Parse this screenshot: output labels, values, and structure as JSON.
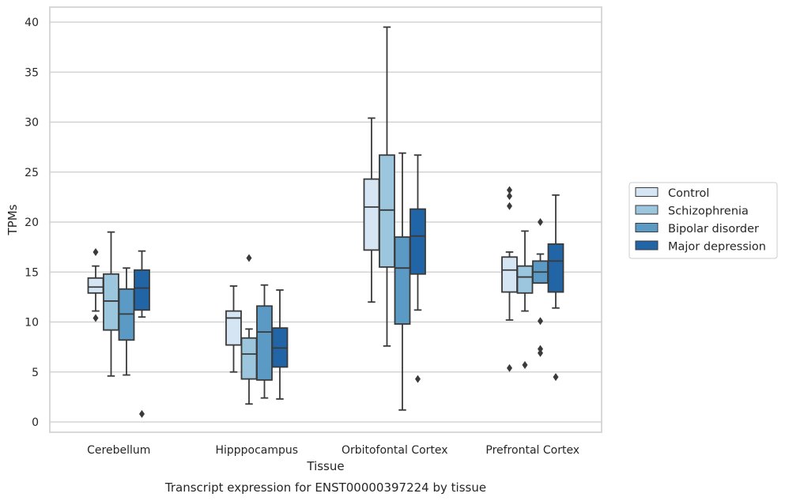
{
  "chart_data": {
    "type": "box",
    "title": "",
    "caption": "Transcript expression for ENST00000397224 by tissue",
    "xlabel": "Tissue",
    "ylabel": "TPMs",
    "ylim": [
      -1.1,
      41.5
    ],
    "yticks": [
      0,
      5,
      10,
      15,
      20,
      25,
      30,
      35,
      40
    ],
    "grid": "horizontal",
    "legend_position": "right",
    "categories": [
      "Cerebellum",
      "Hipppocampus",
      "Orbitofontal Cortex",
      "Prefrontal Cortex"
    ],
    "series": [
      {
        "name": "Control",
        "color": "#d6e5f3",
        "boxes": [
          {
            "whislo": 11.1,
            "q1": 12.9,
            "med": 13.5,
            "q3": 14.4,
            "whishi": 15.6,
            "fliers": [
              10.4,
              17.0
            ]
          },
          {
            "whislo": 5.0,
            "q1": 7.7,
            "med": 10.4,
            "q3": 11.1,
            "whishi": 13.6,
            "fliers": []
          },
          {
            "whislo": 12.0,
            "q1": 17.2,
            "med": 21.5,
            "q3": 24.3,
            "whishi": 30.4,
            "fliers": []
          },
          {
            "whislo": 10.2,
            "q1": 13.0,
            "med": 15.2,
            "q3": 16.5,
            "whishi": 17.0,
            "fliers": [
              5.4,
              21.6,
              22.6,
              23.2
            ]
          }
        ]
      },
      {
        "name": "Schizophrenia",
        "color": "#9cc6dd",
        "boxes": [
          {
            "whislo": 4.6,
            "q1": 9.2,
            "med": 12.1,
            "q3": 14.8,
            "whishi": 19.0,
            "fliers": []
          },
          {
            "whislo": 1.8,
            "q1": 4.3,
            "med": 6.8,
            "q3": 8.4,
            "whishi": 9.3,
            "fliers": [
              16.4
            ]
          },
          {
            "whislo": 7.6,
            "q1": 15.5,
            "med": 21.2,
            "q3": 26.7,
            "whishi": 39.5,
            "fliers": []
          },
          {
            "whislo": 11.1,
            "q1": 12.9,
            "med": 14.5,
            "q3": 15.6,
            "whishi": 19.1,
            "fliers": [
              5.7
            ]
          }
        ]
      },
      {
        "name": "Bipolar disorder",
        "color": "#5b9ac4",
        "boxes": [
          {
            "whislo": 4.7,
            "q1": 8.2,
            "med": 10.8,
            "q3": 13.3,
            "whishi": 15.4,
            "fliers": []
          },
          {
            "whislo": 2.4,
            "q1": 4.2,
            "med": 9.0,
            "q3": 11.6,
            "whishi": 13.7,
            "fliers": []
          },
          {
            "whislo": 1.2,
            "q1": 9.8,
            "med": 15.4,
            "q3": 18.5,
            "whishi": 26.9,
            "fliers": []
          },
          {
            "whislo": 13.9,
            "q1": 13.9,
            "med": 15.0,
            "q3": 16.1,
            "whishi": 16.8,
            "fliers": [
              6.9,
              7.3,
              10.1,
              20.0
            ]
          }
        ]
      },
      {
        "name": "Major depression",
        "color": "#2265a7",
        "boxes": [
          {
            "whislo": 10.5,
            "q1": 11.2,
            "med": 13.4,
            "q3": 15.2,
            "whishi": 17.1,
            "fliers": [
              0.8
            ]
          },
          {
            "whislo": 2.3,
            "q1": 5.5,
            "med": 7.4,
            "q3": 9.4,
            "whishi": 13.2,
            "fliers": []
          },
          {
            "whislo": 11.2,
            "q1": 14.8,
            "med": 18.6,
            "q3": 21.3,
            "whishi": 26.7,
            "fliers": [
              4.3
            ]
          },
          {
            "whislo": 11.4,
            "q1": 13.0,
            "med": 16.1,
            "q3": 17.8,
            "whishi": 22.7,
            "fliers": [
              4.5
            ]
          }
        ]
      }
    ]
  }
}
